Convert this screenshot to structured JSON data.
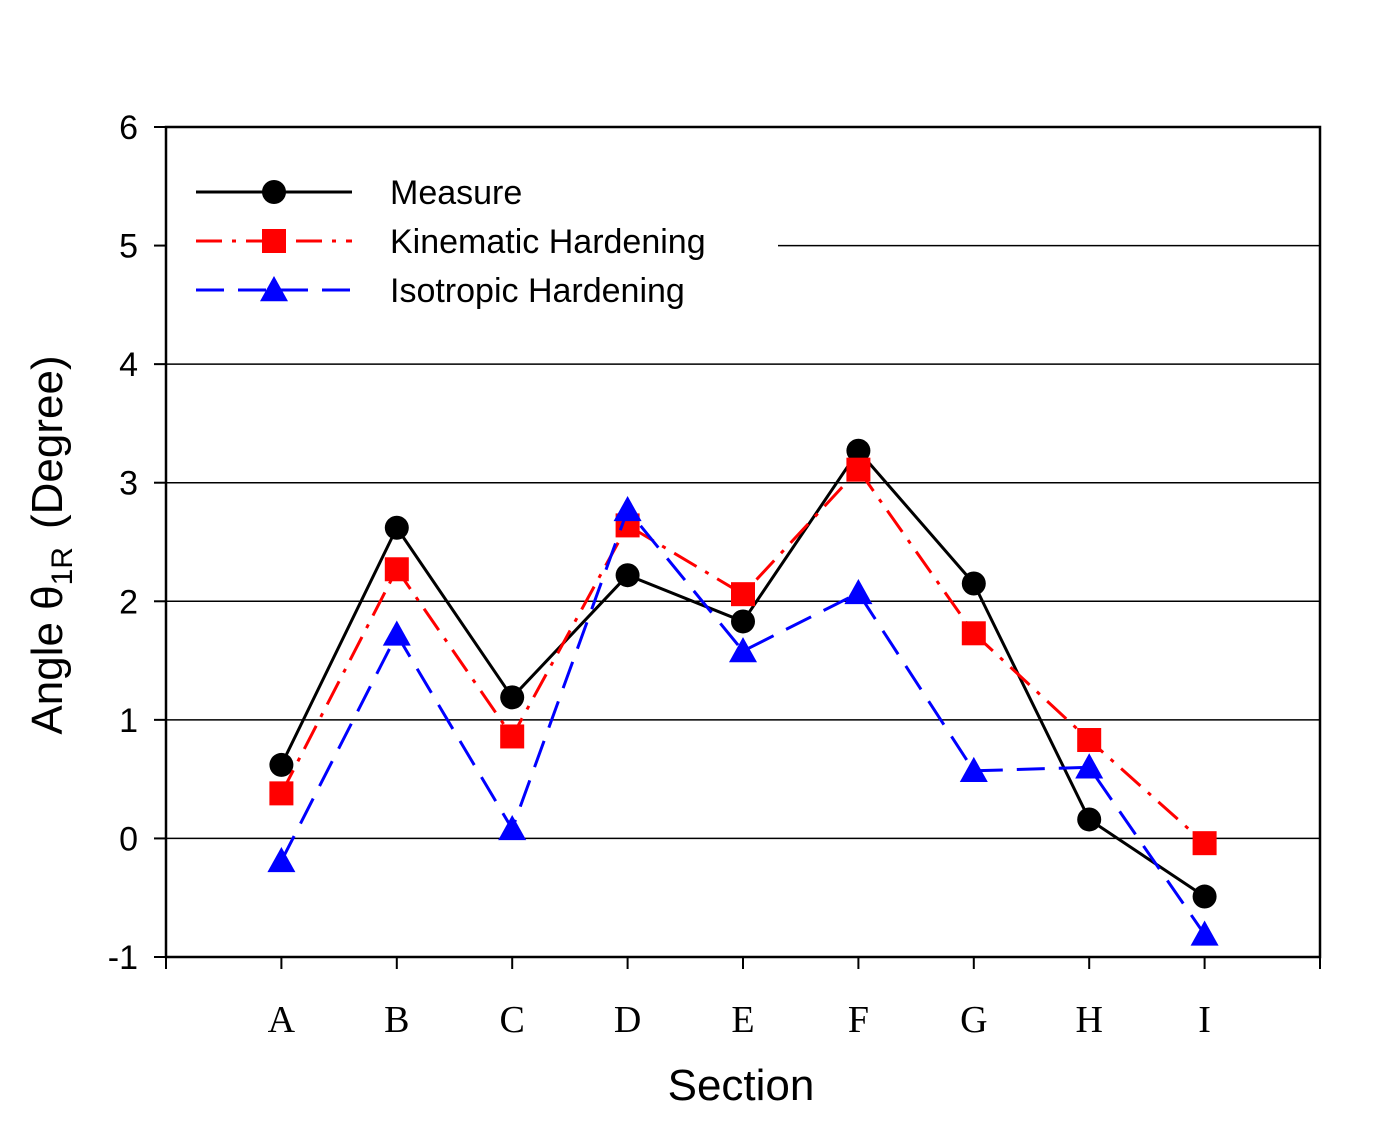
{
  "chart_data": {
    "type": "line",
    "categories": [
      "A",
      "B",
      "C",
      "D",
      "E",
      "F",
      "G",
      "H",
      "I"
    ],
    "xlabel": "Section",
    "ylabel": {
      "prefix": "Angle θ",
      "subscript": "1R",
      "suffix": "(Degree)"
    },
    "ylim": [
      -1,
      6
    ],
    "yticks": [
      "-1",
      "0",
      "1",
      "2",
      "3",
      "4",
      "5",
      "6"
    ],
    "grid": "horizontal",
    "legend_position": "top-left",
    "series": [
      {
        "name": "Measure",
        "color": "#000000",
        "marker": "circle",
        "line_style": "solid",
        "values": [
          0.62,
          2.62,
          1.19,
          2.22,
          1.83,
          3.27,
          2.15,
          0.16,
          -0.49
        ]
      },
      {
        "name": "Kinematic Hardening",
        "color": "#ff0000",
        "marker": "square",
        "line_style": "dash-dot",
        "values": [
          0.38,
          2.27,
          0.86,
          2.64,
          2.06,
          3.11,
          1.73,
          0.83,
          -0.04
        ]
      },
      {
        "name": "Isotropic Hardening",
        "color": "#0000ff",
        "marker": "triangle",
        "line_style": "dashed",
        "values": [
          -0.19,
          1.72,
          0.08,
          2.77,
          1.58,
          2.07,
          0.57,
          0.6,
          -0.81
        ]
      }
    ]
  }
}
